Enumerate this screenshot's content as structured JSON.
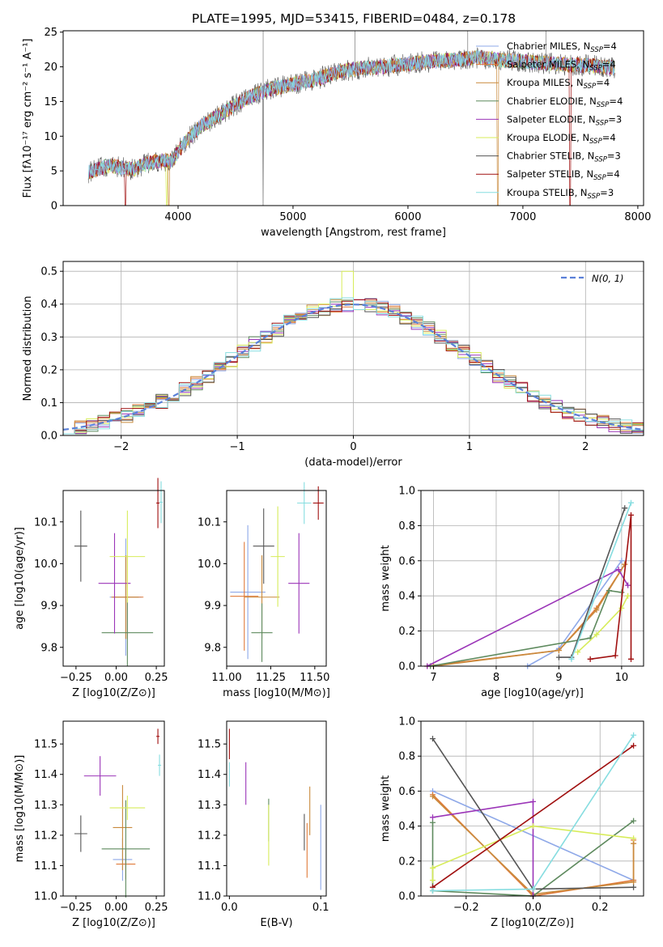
{
  "figure": {
    "title": "PLATE=1995, MJD=53415, FIBERID=0484, z=0.178"
  },
  "colors": {
    "Chabrier MILES": "#8ea8e8",
    "Salpeter MILES": "#e07a3a",
    "Kroupa MILES": "#c98a3c",
    "Chabrier ELODIE": "#5e8a5e",
    "Salpeter ELODIE": "#9b35b8",
    "Kroupa ELODIE": "#d7ec5a",
    "Chabrier STELIB": "#555555",
    "Salpeter STELIB": "#a01010",
    "Kroupa STELIB": "#86dde0",
    "gaussian": "#5a80d8"
  },
  "chart_data": [
    {
      "id": "spectrum",
      "type": "line",
      "xlabel": "wavelength [Angstrom, rest frame]",
      "ylabel": "Flux [fλ10⁻¹⁷ erg cm⁻² s⁻¹ A⁻¹]",
      "xlim": [
        3000,
        8050
      ],
      "ylim": [
        0,
        25.2
      ],
      "xticks": [
        4000,
        5000,
        6000,
        7000,
        8000
      ],
      "yticks": [
        0,
        5,
        10,
        15,
        20,
        25
      ],
      "grid": false,
      "legend_position": "top-right",
      "legend": [
        {
          "name": "Chabrier MILES",
          "nssp": "4"
        },
        {
          "name": "Salpeter MILES",
          "nssp": "4"
        },
        {
          "name": "Kroupa MILES",
          "nssp": "4"
        },
        {
          "name": "Chabrier ELODIE",
          "nssp": "4"
        },
        {
          "name": "Salpeter ELODIE",
          "nssp": "3"
        },
        {
          "name": "Kroupa ELODIE",
          "nssp": "4"
        },
        {
          "name": "Chabrier STELIB",
          "nssp": "3"
        },
        {
          "name": "Salpeter STELIB",
          "nssp": "4"
        },
        {
          "name": "Kroupa STELIB",
          "nssp": "3"
        }
      ],
      "data_range": [
        3220,
        7800
      ],
      "continuum": {
        "x": [
          3220,
          3400,
          3600,
          3800,
          3950,
          4050,
          4200,
          4400,
          4600,
          4800,
          5000,
          5200,
          5400,
          5600,
          5800,
          6000,
          6200,
          6400,
          6600,
          6800,
          7000,
          7200,
          7400,
          7600,
          7800
        ],
        "y": [
          4.8,
          5.8,
          5.2,
          6.4,
          6.5,
          9.0,
          11.5,
          13.5,
          15.5,
          16.8,
          17.5,
          18.2,
          19.3,
          19.8,
          20.0,
          20.4,
          20.8,
          21.0,
          21.3,
          21.0,
          20.8,
          20.5,
          20.3,
          20.2,
          19.8
        ]
      },
      "spikes": [
        {
          "x": 4740,
          "y": 25.2
        },
        {
          "x": 5540,
          "y": 25.2
        },
        {
          "x": 6520,
          "y": 25.2
        },
        {
          "x": 7200,
          "y": 25.2
        }
      ],
      "dropouts": [
        {
          "series": "Salpeter STELIB",
          "x": 3540
        },
        {
          "series": "Kroupa MILES",
          "x": 3920
        },
        {
          "series": "Kroupa ELODIE",
          "x": 3900
        },
        {
          "series": "Chabrier STELIB",
          "x": 4740
        },
        {
          "series": "Kroupa MILES",
          "x": 6780
        },
        {
          "series": "Salpeter STELIB",
          "x": 7410
        }
      ]
    },
    {
      "id": "residuals",
      "type": "histogram",
      "xlabel": "(data-model)/error",
      "ylabel": "Normed distribution",
      "xlim": [
        -2.5,
        2.5
      ],
      "ylim": [
        0,
        0.53
      ],
      "xticks": [
        -2,
        -1,
        0,
        1,
        2
      ],
      "yticks": [
        0.0,
        0.1,
        0.2,
        0.3,
        0.4,
        0.5
      ],
      "grid": true,
      "legend_position": "top-right",
      "legend": [
        "N(0,1)"
      ],
      "gaussian_label": "N(0, 1)",
      "bin_width": 0.1
    },
    {
      "id": "age_vs_Z",
      "type": "scatter",
      "xlabel": "Z [log10(Z/Z⊙)]",
      "ylabel": "age [log10(age/yr)]",
      "xlim": [
        -0.33,
        0.3
      ],
      "ylim": [
        9.755,
        10.175
      ],
      "xticks": [
        -0.25,
        0.0,
        0.25
      ],
      "yticks": [
        9.8,
        9.9,
        10.0,
        10.1
      ],
      "grid": false,
      "points": [
        {
          "series": "Chabrier MILES",
          "x": 0.06,
          "y": 9.92,
          "xerr": 0.1,
          "yerr": 0.14
        },
        {
          "series": "Salpeter MILES",
          "x": 0.07,
          "y": 9.92,
          "xerr": 0.1,
          "yerr": 0.1
        },
        {
          "series": "Kroupa MILES",
          "x": 0.06,
          "y": 9.92,
          "xerr": 0.08,
          "yerr": 0.1
        },
        {
          "series": "Chabrier ELODIE",
          "x": 0.07,
          "y": 9.835,
          "xerr": 0.16,
          "yerr": 0.08
        },
        {
          "series": "Salpeter ELODIE",
          "x": -0.01,
          "y": 9.953,
          "xerr": 0.1,
          "yerr": 0.12
        },
        {
          "series": "Kroupa ELODIE",
          "x": 0.07,
          "y": 10.017,
          "xerr": 0.11,
          "yerr": 0.11
        },
        {
          "series": "Chabrier STELIB",
          "x": -0.22,
          "y": 10.042,
          "xerr": 0.04,
          "yerr": 0.085
        },
        {
          "series": "Salpeter STELIB",
          "x": 0.26,
          "y": 10.145,
          "xerr": 0.01,
          "yerr": 0.06
        },
        {
          "series": "Kroupa STELIB",
          "x": 0.28,
          "y": 10.147,
          "xerr": 0.01,
          "yerr": 0.05
        }
      ]
    },
    {
      "id": "age_vs_mass",
      "type": "scatter",
      "xlabel": "mass [log10(M/M⊙)]",
      "ylabel": "",
      "xlim": [
        11.0,
        11.565
      ],
      "ylim": [
        9.755,
        10.175
      ],
      "xticks": [
        11.0,
        11.25,
        11.5
      ],
      "yticks": [
        9.8,
        9.9,
        10.0,
        10.1
      ],
      "grid": false,
      "points": [
        {
          "series": "Chabrier MILES",
          "x": 11.12,
          "y": 9.932,
          "xerr": 0.1,
          "yerr": 0.16
        },
        {
          "series": "Salpeter MILES",
          "x": 11.1,
          "y": 9.922,
          "xerr": 0.08,
          "yerr": 0.13
        },
        {
          "series": "Kroupa MILES",
          "x": 11.2,
          "y": 9.92,
          "xerr": 0.1,
          "yerr": 0.1
        },
        {
          "series": "Chabrier ELODIE",
          "x": 11.2,
          "y": 9.835,
          "xerr": 0.06,
          "yerr": 0.07
        },
        {
          "series": "Salpeter ELODIE",
          "x": 11.41,
          "y": 9.953,
          "xerr": 0.06,
          "yerr": 0.12
        },
        {
          "series": "Kroupa ELODIE",
          "x": 11.29,
          "y": 10.017,
          "xerr": 0.04,
          "yerr": 0.12
        },
        {
          "series": "Chabrier STELIB",
          "x": 11.21,
          "y": 10.042,
          "xerr": 0.06,
          "yerr": 0.09
        },
        {
          "series": "Salpeter STELIB",
          "x": 11.52,
          "y": 10.145,
          "xerr": 0.03,
          "yerr": 0.04
        },
        {
          "series": "Kroupa STELIB",
          "x": 11.44,
          "y": 10.145,
          "xerr": 0.04,
          "yerr": 0.05
        }
      ]
    },
    {
      "id": "weight_vs_age",
      "type": "line",
      "xlabel": "age [log10(age/yr)]",
      "ylabel": "mass weight",
      "xlim": [
        6.8,
        10.35
      ],
      "ylim": [
        0,
        1.0
      ],
      "xticks": [
        7,
        8,
        9,
        10
      ],
      "yticks": [
        0.0,
        0.2,
        0.4,
        0.6,
        0.8,
        1.0
      ],
      "grid": true,
      "series": [
        {
          "name": "Chabrier MILES",
          "points": [
            [
              8.5,
              0.0
            ],
            [
              9.0,
              0.1
            ],
            [
              10.0,
              0.6
            ]
          ]
        },
        {
          "name": "Salpeter MILES",
          "points": [
            [
              6.9,
              0.0
            ],
            [
              9.0,
              0.09
            ],
            [
              9.6,
              0.33
            ],
            [
              10.05,
              0.58
            ]
          ]
        },
        {
          "name": "Kroupa MILES",
          "points": [
            [
              7.0,
              0.0
            ],
            [
              9.0,
              0.09
            ],
            [
              9.6,
              0.32
            ],
            [
              10.05,
              0.58
            ]
          ]
        },
        {
          "name": "Chabrier ELODIE",
          "points": [
            [
              6.95,
              0.0
            ],
            [
              9.5,
              0.16
            ],
            [
              9.8,
              0.43
            ],
            [
              10.0,
              0.42
            ]
          ]
        },
        {
          "name": "Salpeter ELODIE",
          "points": [
            [
              6.9,
              0.0
            ],
            [
              9.95,
              0.55
            ],
            [
              10.1,
              0.46
            ]
          ]
        },
        {
          "name": "Kroupa ELODIE",
          "points": [
            [
              9.3,
              0.08
            ],
            [
              9.6,
              0.18
            ],
            [
              10.0,
              0.33
            ],
            [
              10.1,
              0.4
            ]
          ]
        },
        {
          "name": "Chabrier STELIB",
          "points": [
            [
              9.0,
              0.05
            ],
            [
              9.2,
              0.05
            ],
            [
              10.05,
              0.9
            ]
          ]
        },
        {
          "name": "Salpeter STELIB",
          "points": [
            [
              9.5,
              0.04
            ],
            [
              9.9,
              0.06
            ],
            [
              10.15,
              0.86
            ],
            [
              10.15,
              0.04
            ]
          ]
        },
        {
          "name": "Kroupa STELIB",
          "points": [
            [
              9.2,
              0.04
            ],
            [
              10.15,
              0.93
            ]
          ]
        }
      ]
    },
    {
      "id": "mass_vs_Z",
      "type": "scatter",
      "xlabel": "Z [log10(Z/Z⊙)]",
      "ylabel": "mass [log10(M/M⊙)]",
      "xlim": [
        -0.33,
        0.3
      ],
      "ylim": [
        11.0,
        11.575
      ],
      "xticks": [
        -0.25,
        0.0,
        0.25
      ],
      "yticks": [
        11.0,
        11.1,
        11.2,
        11.3,
        11.4,
        11.5
      ],
      "grid": false,
      "points": [
        {
          "series": "Chabrier MILES",
          "x": 0.04,
          "y": 11.12,
          "xerr": 0.06,
          "yerr": 0.07
        },
        {
          "series": "Salpeter MILES",
          "x": 0.06,
          "y": 11.105,
          "xerr": 0.06,
          "yerr": 0.05
        },
        {
          "series": "Kroupa MILES",
          "x": 0.04,
          "y": 11.225,
          "xerr": 0.06,
          "yerr": 0.14
        },
        {
          "series": "Chabrier ELODIE",
          "x": 0.06,
          "y": 11.155,
          "xerr": 0.15,
          "yerr": 0.16
        },
        {
          "series": "Salpeter ELODIE",
          "x": -0.1,
          "y": 11.395,
          "xerr": 0.1,
          "yerr": 0.065
        },
        {
          "series": "Kroupa ELODIE",
          "x": 0.07,
          "y": 11.29,
          "xerr": 0.11,
          "yerr": 0.04
        },
        {
          "series": "Chabrier STELIB",
          "x": -0.22,
          "y": 11.205,
          "xerr": 0.04,
          "yerr": 0.06
        },
        {
          "series": "Salpeter STELIB",
          "x": 0.26,
          "y": 11.525,
          "xerr": 0.01,
          "yerr": 0.025
        },
        {
          "series": "Kroupa STELIB",
          "x": 0.27,
          "y": 11.43,
          "xerr": 0.01,
          "yerr": 0.035
        }
      ]
    },
    {
      "id": "mass_vs_ebv",
      "type": "scatter",
      "xlabel": "E(B-V)",
      "ylabel": "",
      "xlim": [
        -0.003,
        0.106
      ],
      "ylim": [
        11.0,
        11.575
      ],
      "xticks": [
        0.0,
        0.1
      ],
      "yticks": [
        11.0,
        11.1,
        11.2,
        11.3,
        11.4,
        11.5
      ],
      "grid": false,
      "points": [
        {
          "series": "Salpeter STELIB",
          "x": 0.0,
          "y": 11.5,
          "xerr": 0,
          "yerr": 0.05
        },
        {
          "series": "Kroupa STELIB",
          "x": 0.0,
          "y": 11.4,
          "xerr": 0,
          "yerr": 0.04
        },
        {
          "series": "Salpeter ELODIE",
          "x": 0.018,
          "y": 11.37,
          "xerr": 0,
          "yerr": 0.07
        },
        {
          "series": "Chabrier ELODIE",
          "x": 0.043,
          "y": 11.25,
          "xerr": 0,
          "yerr": 0.07
        },
        {
          "series": "Kroupa ELODIE",
          "x": 0.043,
          "y": 11.2,
          "xerr": 0,
          "yerr": 0.1
        },
        {
          "series": "Chabrier STELIB",
          "x": 0.082,
          "y": 11.21,
          "xerr": 0,
          "yerr": 0.06
        },
        {
          "series": "Salpeter MILES",
          "x": 0.085,
          "y": 11.15,
          "xerr": 0,
          "yerr": 0.09
        },
        {
          "series": "Kroupa MILES",
          "x": 0.088,
          "y": 11.28,
          "xerr": 0,
          "yerr": 0.08
        },
        {
          "series": "Chabrier MILES",
          "x": 0.1,
          "y": 11.16,
          "xerr": 0,
          "yerr": 0.14
        }
      ]
    },
    {
      "id": "weight_vs_Z",
      "type": "line",
      "xlabel": "Z [log10(Z/Z⊙)]",
      "ylabel": "mass weight",
      "xlim": [
        -0.335,
        0.33
      ],
      "ylim": [
        0,
        1.0
      ],
      "xticks": [
        -0.2,
        0.0,
        0.2
      ],
      "yticks": [
        0.0,
        0.2,
        0.4,
        0.6,
        0.8,
        1.0
      ],
      "grid": true,
      "series": [
        {
          "name": "Chabrier MILES",
          "points": [
            [
              -0.3,
              0.6
            ],
            [
              0.3,
              0.09
            ]
          ]
        },
        {
          "name": "Salpeter MILES",
          "points": [
            [
              -0.3,
              0.58
            ],
            [
              0.0,
              0.0
            ],
            [
              0.3,
              0.09
            ],
            [
              0.3,
              0.32
            ]
          ]
        },
        {
          "name": "Kroupa MILES",
          "points": [
            [
              -0.3,
              0.57
            ],
            [
              0.0,
              0.01
            ],
            [
              0.3,
              0.08
            ],
            [
              0.3,
              0.3
            ]
          ]
        },
        {
          "name": "Chabrier ELODIE",
          "points": [
            [
              -0.3,
              0.42
            ],
            [
              -0.3,
              0.03
            ],
            [
              0.0,
              0.0
            ],
            [
              0.3,
              0.43
            ]
          ]
        },
        {
          "name": "Salpeter ELODIE",
          "points": [
            [
              -0.3,
              0.45
            ],
            [
              0.0,
              0.54
            ],
            [
              0.0,
              0.0
            ]
          ]
        },
        {
          "name": "Kroupa ELODIE",
          "points": [
            [
              -0.3,
              0.09
            ],
            [
              -0.3,
              0.16
            ],
            [
              0.0,
              0.4
            ],
            [
              0.3,
              0.33
            ]
          ]
        },
        {
          "name": "Chabrier STELIB",
          "points": [
            [
              -0.3,
              0.9
            ],
            [
              0.0,
              0.04
            ],
            [
              0.3,
              0.05
            ]
          ]
        },
        {
          "name": "Salpeter STELIB",
          "points": [
            [
              -0.3,
              0.05
            ],
            [
              0.3,
              0.86
            ]
          ]
        },
        {
          "name": "Kroupa STELIB",
          "points": [
            [
              -0.3,
              0.03
            ],
            [
              0.0,
              0.04
            ],
            [
              0.3,
              0.92
            ]
          ]
        }
      ]
    }
  ]
}
